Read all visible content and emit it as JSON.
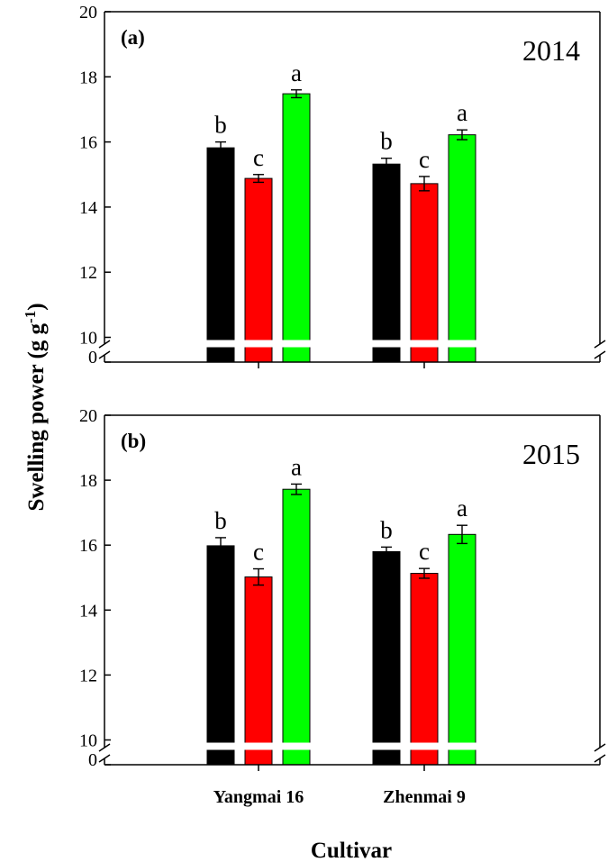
{
  "figure": {
    "ylabel_main": "Swelling power (g g",
    "ylabel_sup": "-1",
    "ylabel_close": ")",
    "xlabel": "Cultivar"
  },
  "chart_data": [
    {
      "type": "bar",
      "panel": "(a)",
      "year": "2014",
      "categories": [
        "Yangmai 16",
        "Zhenmai 9"
      ],
      "series": [
        {
          "name": "black",
          "color": "#000000",
          "values": [
            15.82,
            15.32
          ],
          "errors": [
            0.18,
            0.18
          ],
          "letters": [
            "b",
            "b"
          ]
        },
        {
          "name": "red",
          "color": "#ff0000",
          "values": [
            14.88,
            14.72
          ],
          "errors": [
            0.12,
            0.22
          ],
          "letters": [
            "c",
            "c"
          ]
        },
        {
          "name": "green",
          "color": "#00ff00",
          "values": [
            17.48,
            16.22
          ],
          "errors": [
            0.12,
            0.15
          ],
          "letters": [
            "a",
            "a"
          ]
        }
      ],
      "yticks": [
        "0",
        "10",
        "12",
        "14",
        "16",
        "18",
        "20"
      ],
      "ylim": [
        10,
        20
      ],
      "axis_break": true
    },
    {
      "type": "bar",
      "panel": "(b)",
      "year": "2015",
      "categories": [
        "Yangmai 16",
        "Zhenmai 9"
      ],
      "series": [
        {
          "name": "black",
          "color": "#000000",
          "values": [
            15.98,
            15.8
          ],
          "errors": [
            0.25,
            0.14
          ],
          "letters": [
            "b",
            "b"
          ]
        },
        {
          "name": "red",
          "color": "#ff0000",
          "values": [
            15.02,
            15.13
          ],
          "errors": [
            0.25,
            0.15
          ],
          "letters": [
            "c",
            "c"
          ]
        },
        {
          "name": "green",
          "color": "#00ff00",
          "values": [
            17.72,
            16.33
          ],
          "errors": [
            0.16,
            0.28
          ],
          "letters": [
            "a",
            "a"
          ]
        }
      ],
      "yticks": [
        "0",
        "10",
        "12",
        "14",
        "16",
        "18",
        "20"
      ],
      "ylim": [
        10,
        20
      ],
      "axis_break": true
    }
  ]
}
